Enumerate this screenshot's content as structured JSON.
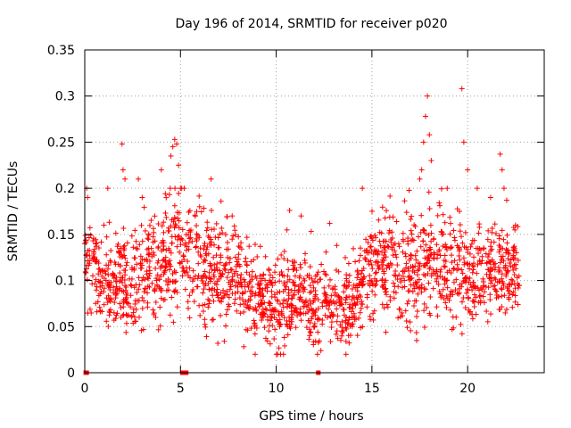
{
  "chart_data": {
    "type": "scatter",
    "title": "Day 196 of 2014, SRMTID for receiver p020",
    "xlabel": "GPS time / hours",
    "ylabel": "SRMTID / TECUs",
    "xlim": [
      0,
      24
    ],
    "ylim": [
      0,
      0.35
    ],
    "x_ticks": [
      0,
      5,
      10,
      15,
      20
    ],
    "x_tick_labels": [
      "0",
      "5",
      "10",
      "15",
      "20"
    ],
    "y_ticks": [
      0,
      0.05,
      0.1,
      0.15,
      0.2,
      0.25,
      0.3,
      0.35
    ],
    "y_tick_labels": [
      "0",
      "0.05",
      "0.1",
      "0.15",
      "0.2",
      "0.25",
      "0.3",
      "0.35"
    ],
    "grid": true,
    "marker": "+",
    "color": "#ff0000",
    "trend": [
      [
        0.0,
        0.115
      ],
      [
        1.0,
        0.1
      ],
      [
        2.0,
        0.095
      ],
      [
        3.0,
        0.105
      ],
      [
        4.0,
        0.12
      ],
      [
        5.0,
        0.13
      ],
      [
        6.0,
        0.115
      ],
      [
        7.0,
        0.11
      ],
      [
        8.0,
        0.095
      ],
      [
        9.0,
        0.08
      ],
      [
        10.0,
        0.07
      ],
      [
        11.0,
        0.08
      ],
      [
        12.0,
        0.075
      ],
      [
        13.0,
        0.07
      ],
      [
        14.0,
        0.065
      ],
      [
        14.5,
        0.09
      ],
      [
        15.0,
        0.11
      ],
      [
        16.0,
        0.12
      ],
      [
        17.0,
        0.105
      ],
      [
        18.0,
        0.12
      ],
      [
        19.0,
        0.115
      ],
      [
        20.0,
        0.1
      ],
      [
        21.0,
        0.11
      ],
      [
        22.0,
        0.115
      ],
      [
        22.7,
        0.1
      ]
    ],
    "spread": [
      [
        0.0,
        0.03
      ],
      [
        4.0,
        0.04
      ],
      [
        5.0,
        0.045
      ],
      [
        9.0,
        0.03
      ],
      [
        12.0,
        0.03
      ],
      [
        14.0,
        0.03
      ],
      [
        16.0,
        0.035
      ],
      [
        18.0,
        0.04
      ],
      [
        20.0,
        0.035
      ],
      [
        22.7,
        0.03
      ]
    ],
    "highlighted_points": [
      [
        0.0,
        0.14
      ],
      [
        0.1,
        0.2
      ],
      [
        0.15,
        0.19
      ],
      [
        1.0,
        0.16
      ],
      [
        1.95,
        0.248
      ],
      [
        2.0,
        0.22
      ],
      [
        2.1,
        0.21
      ],
      [
        2.8,
        0.21
      ],
      [
        3.0,
        0.19
      ],
      [
        4.0,
        0.22
      ],
      [
        4.5,
        0.235
      ],
      [
        4.6,
        0.245
      ],
      [
        4.7,
        0.253
      ],
      [
        4.8,
        0.248
      ],
      [
        4.9,
        0.225
      ],
      [
        5.0,
        0.2
      ],
      [
        6.0,
        0.18
      ],
      [
        6.6,
        0.21
      ],
      [
        7.7,
        0.17
      ],
      [
        10.7,
        0.176
      ],
      [
        11.3,
        0.17
      ],
      [
        14.5,
        0.2
      ],
      [
        17.7,
        0.25
      ],
      [
        17.8,
        0.278
      ],
      [
        17.9,
        0.3
      ],
      [
        18.0,
        0.258
      ],
      [
        18.1,
        0.23
      ],
      [
        17.6,
        0.22
      ],
      [
        17.5,
        0.21
      ],
      [
        19.7,
        0.308
      ],
      [
        19.8,
        0.25
      ],
      [
        20.0,
        0.22
      ],
      [
        20.5,
        0.2
      ],
      [
        21.2,
        0.19
      ],
      [
        21.7,
        0.237
      ],
      [
        21.8,
        0.22
      ],
      [
        21.9,
        0.2
      ],
      [
        22.5,
        0.16
      ]
    ],
    "zero_points": [
      0.05,
      0.1,
      5.1,
      5.3,
      12.2
    ],
    "samples_per_hour": 85,
    "random_seed": 196
  }
}
